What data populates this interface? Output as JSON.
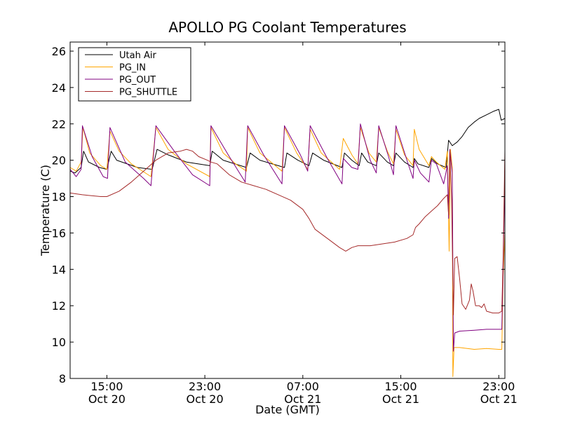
{
  "chart_data": {
    "type": "line",
    "title": "APOLLO PG Coolant Temperatures",
    "xlabel": "Date (GMT)",
    "ylabel": "Temperature (C)",
    "x_unit": "hours since Oct 20 12:00 GMT",
    "xlim": [
      0,
      35.5
    ],
    "ylim": [
      8,
      26.5
    ],
    "yticks": [
      8,
      10,
      12,
      14,
      16,
      18,
      20,
      22,
      24,
      26
    ],
    "xticks": [
      {
        "x": 3,
        "line1": "15:00",
        "line2": "Oct 20"
      },
      {
        "x": 11,
        "line1": "23:00",
        "line2": "Oct 20"
      },
      {
        "x": 19,
        "line1": "07:00",
        "line2": "Oct 21"
      },
      {
        "x": 27,
        "line1": "15:00",
        "line2": "Oct 21"
      },
      {
        "x": 35,
        "line1": "23:00",
        "line2": "Oct 21"
      }
    ],
    "legend_position": "upper-left",
    "series": [
      {
        "name": "Utah Air",
        "color": "#000000",
        "points": [
          [
            0,
            19.4
          ],
          [
            0.4,
            19.3
          ],
          [
            0.9,
            19.6
          ],
          [
            1.1,
            20.5
          ],
          [
            1.5,
            19.9
          ],
          [
            2.4,
            19.6
          ],
          [
            3.0,
            19.5
          ],
          [
            3.35,
            20.5
          ],
          [
            3.8,
            20.0
          ],
          [
            5.5,
            19.6
          ],
          [
            6.7,
            19.5
          ],
          [
            7.1,
            20.6
          ],
          [
            8,
            20.3
          ],
          [
            9.5,
            19.9
          ],
          [
            11.4,
            19.7
          ],
          [
            11.6,
            20.5
          ],
          [
            12.5,
            20.0
          ],
          [
            14.4,
            19.6
          ],
          [
            14.7,
            20.4
          ],
          [
            15.5,
            20.0
          ],
          [
            17.5,
            19.6
          ],
          [
            17.7,
            20.4
          ],
          [
            18.6,
            20.0
          ],
          [
            19.5,
            19.7
          ],
          [
            19.8,
            20.4
          ],
          [
            20.7,
            20.0
          ],
          [
            22.2,
            19.6
          ],
          [
            22.4,
            20.4
          ],
          [
            23.0,
            20.0
          ],
          [
            23.6,
            19.7
          ],
          [
            23.8,
            20.4
          ],
          [
            24.3,
            19.9
          ],
          [
            25.0,
            19.7
          ],
          [
            25.2,
            20.4
          ],
          [
            25.9,
            19.9
          ],
          [
            26.4,
            19.7
          ],
          [
            26.6,
            20.4
          ],
          [
            27.3,
            19.9
          ],
          [
            28.0,
            19.6
          ],
          [
            28.1,
            20.1
          ],
          [
            28.4,
            19.8
          ],
          [
            29.3,
            19.6
          ],
          [
            29.5,
            20.1
          ],
          [
            30.0,
            19.8
          ],
          [
            30.7,
            19.6
          ],
          [
            30.9,
            21.1
          ],
          [
            31.2,
            20.8
          ],
          [
            31.6,
            21.0
          ],
          [
            32.0,
            21.3
          ],
          [
            32.5,
            21.8
          ],
          [
            33.0,
            22.1
          ],
          [
            33.4,
            22.3
          ],
          [
            34.0,
            22.5
          ],
          [
            34.6,
            22.7
          ],
          [
            35.0,
            22.8
          ],
          [
            35.2,
            22.2
          ],
          [
            35.5,
            22.3
          ]
        ]
      },
      {
        "name": "PG_IN",
        "color": "#ffa500",
        "points": [
          [
            0,
            19.6
          ],
          [
            0.5,
            19.4
          ],
          [
            0.9,
            19.9
          ],
          [
            1.05,
            21.8
          ],
          [
            1.6,
            20.4
          ],
          [
            2.5,
            19.7
          ],
          [
            3.0,
            19.5
          ],
          [
            3.25,
            21.6
          ],
          [
            4,
            20.5
          ],
          [
            5,
            19.8
          ],
          [
            6.6,
            19.1
          ],
          [
            7.0,
            21.8
          ],
          [
            8,
            20.6
          ],
          [
            9.5,
            19.8
          ],
          [
            11.4,
            19.1
          ],
          [
            11.5,
            21.8
          ],
          [
            12.5,
            20.4
          ],
          [
            13.5,
            19.8
          ],
          [
            14.4,
            19.4
          ],
          [
            14.5,
            21.8
          ],
          [
            15.5,
            20.4
          ],
          [
            17.3,
            19.4
          ],
          [
            17.5,
            21.8
          ],
          [
            18.5,
            20.4
          ],
          [
            19.4,
            19.5
          ],
          [
            19.6,
            21.7
          ],
          [
            20.5,
            20.4
          ],
          [
            22.0,
            19.5
          ],
          [
            22.3,
            21.2
          ],
          [
            23,
            20.3
          ],
          [
            23.5,
            19.8
          ],
          [
            23.7,
            21.8
          ],
          [
            24.4,
            20.4
          ],
          [
            25.0,
            19.9
          ],
          [
            25.2,
            21.8
          ],
          [
            25.9,
            20.5
          ],
          [
            26.4,
            19.8
          ],
          [
            26.6,
            21.7
          ],
          [
            27.3,
            20.3
          ],
          [
            28.0,
            19.7
          ],
          [
            28.1,
            21.7
          ],
          [
            28.5,
            20.6
          ],
          [
            29.3,
            19.7
          ],
          [
            29.5,
            20.2
          ],
          [
            29.9,
            19.9
          ],
          [
            30.6,
            19.5
          ],
          [
            30.8,
            20.5
          ],
          [
            30.95,
            15.0
          ],
          [
            31.05,
            20.6
          ],
          [
            31.2,
            19.6
          ],
          [
            31.25,
            8.1
          ],
          [
            31.35,
            9.7
          ],
          [
            31.8,
            9.7
          ],
          [
            33.0,
            9.6
          ],
          [
            34.0,
            9.65
          ],
          [
            35.0,
            9.6
          ],
          [
            35.25,
            9.6
          ],
          [
            35.35,
            13.5
          ],
          [
            35.5,
            16.0
          ]
        ]
      },
      {
        "name": "PG_OUT",
        "color": "#800080",
        "points": [
          [
            0,
            19.5
          ],
          [
            0.5,
            19.1
          ],
          [
            0.9,
            19.5
          ],
          [
            1.0,
            21.9
          ],
          [
            1.8,
            20.2
          ],
          [
            2.7,
            19.1
          ],
          [
            3.05,
            19.0
          ],
          [
            3.25,
            21.8
          ],
          [
            4.5,
            19.9
          ],
          [
            6,
            19.0
          ],
          [
            6.6,
            18.6
          ],
          [
            7.0,
            21.9
          ],
          [
            8.5,
            20.5
          ],
          [
            10,
            19.2
          ],
          [
            11.4,
            18.6
          ],
          [
            11.5,
            21.9
          ],
          [
            13,
            20.2
          ],
          [
            14.3,
            18.8
          ],
          [
            14.5,
            21.9
          ],
          [
            15.8,
            20.3
          ],
          [
            17.3,
            18.7
          ],
          [
            17.5,
            21.9
          ],
          [
            18.8,
            20.3
          ],
          [
            19.4,
            19.4
          ],
          [
            19.6,
            21.9
          ],
          [
            21.0,
            20.1
          ],
          [
            22.2,
            18.7
          ],
          [
            22.3,
            20.1
          ],
          [
            23.0,
            19.6
          ],
          [
            23.5,
            19.5
          ],
          [
            23.7,
            22.0
          ],
          [
            24.5,
            20.0
          ],
          [
            25.0,
            19.3
          ],
          [
            25.2,
            21.9
          ],
          [
            26.0,
            20.2
          ],
          [
            26.4,
            19.2
          ],
          [
            26.6,
            21.9
          ],
          [
            27.5,
            20.0
          ],
          [
            28.0,
            19.0
          ],
          [
            28.1,
            20.0
          ],
          [
            28.6,
            19.3
          ],
          [
            29.3,
            18.8
          ],
          [
            29.5,
            20.0
          ],
          [
            29.9,
            19.8
          ],
          [
            30.5,
            18.7
          ],
          [
            30.8,
            19.7
          ],
          [
            30.9,
            16.8
          ],
          [
            31.0,
            20.6
          ],
          [
            31.2,
            19.3
          ],
          [
            31.3,
            9.5
          ],
          [
            31.4,
            10.5
          ],
          [
            31.8,
            10.6
          ],
          [
            33.0,
            10.65
          ],
          [
            34.0,
            10.7
          ],
          [
            35.0,
            10.7
          ],
          [
            35.25,
            10.7
          ],
          [
            35.35,
            13.8
          ],
          [
            35.5,
            19.6
          ]
        ]
      },
      {
        "name": "PG_SHUTTLE",
        "color": "#a52a2a",
        "points": [
          [
            0,
            18.2
          ],
          [
            1,
            18.1
          ],
          [
            2.5,
            18.0
          ],
          [
            3,
            18.0
          ],
          [
            4,
            18.3
          ],
          [
            5,
            18.8
          ],
          [
            6,
            19.4
          ],
          [
            7,
            20.0
          ],
          [
            8,
            20.4
          ],
          [
            9,
            20.5
          ],
          [
            9.5,
            20.6
          ],
          [
            10,
            20.5
          ],
          [
            10.5,
            20.2
          ],
          [
            11.2,
            20.0
          ],
          [
            11.5,
            19.9
          ],
          [
            12,
            19.8
          ],
          [
            13,
            19.2
          ],
          [
            14,
            18.8
          ],
          [
            15,
            18.6
          ],
          [
            16,
            18.4
          ],
          [
            17,
            18.1
          ],
          [
            18,
            17.8
          ],
          [
            19,
            17.3
          ],
          [
            19.5,
            16.8
          ],
          [
            20,
            16.2
          ],
          [
            21,
            15.7
          ],
          [
            22,
            15.2
          ],
          [
            22.5,
            15.0
          ],
          [
            23,
            15.2
          ],
          [
            23.5,
            15.3
          ],
          [
            24.5,
            15.3
          ],
          [
            25.5,
            15.4
          ],
          [
            26.5,
            15.5
          ],
          [
            27.5,
            15.7
          ],
          [
            28,
            15.9
          ],
          [
            28.2,
            16.3
          ],
          [
            28.5,
            16.5
          ],
          [
            29,
            16.9
          ],
          [
            29.5,
            17.2
          ],
          [
            30,
            17.5
          ],
          [
            30.5,
            17.9
          ],
          [
            30.8,
            18.1
          ],
          [
            30.9,
            17.0
          ],
          [
            31.0,
            20.5
          ],
          [
            31.15,
            17.8
          ],
          [
            31.3,
            11.5
          ],
          [
            31.4,
            14.6
          ],
          [
            31.6,
            14.7
          ],
          [
            31.8,
            13.5
          ],
          [
            32.0,
            12.1
          ],
          [
            32.3,
            11.8
          ],
          [
            32.6,
            12.3
          ],
          [
            32.75,
            13.2
          ],
          [
            32.9,
            12.8
          ],
          [
            33.1,
            12.0
          ],
          [
            33.4,
            12.0
          ],
          [
            33.6,
            11.9
          ],
          [
            33.8,
            12.1
          ],
          [
            34.0,
            11.7
          ],
          [
            34.5,
            11.6
          ],
          [
            35.0,
            11.6
          ],
          [
            35.25,
            11.7
          ],
          [
            35.35,
            14.5
          ],
          [
            35.5,
            20.5
          ]
        ]
      }
    ]
  }
}
